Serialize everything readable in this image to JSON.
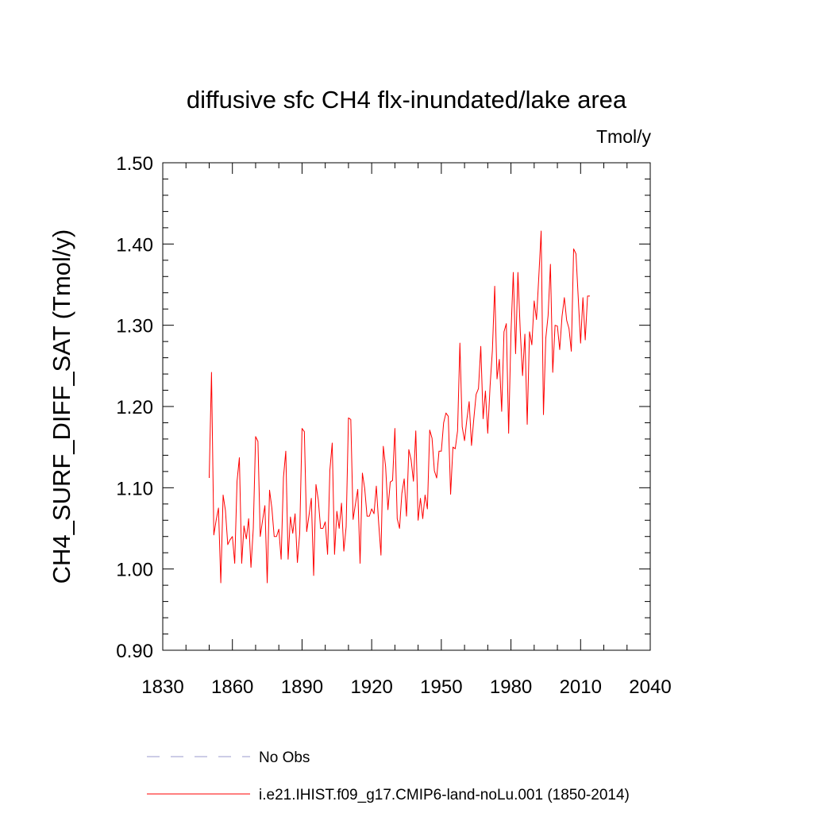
{
  "chart_data": {
    "type": "line",
    "title": "diffusive sfc CH4 flx-inundated/lake area",
    "units": "Tmol/y",
    "xlabel": "",
    "ylabel": "CH4_SURF_DIFF_SAT  (Tmol/y)",
    "xlim": [
      1830,
      2040
    ],
    "ylim": [
      0.9,
      1.5
    ],
    "x_ticks": [
      1830,
      1860,
      1890,
      1920,
      1950,
      1980,
      2010,
      2040
    ],
    "x_tick_labels": [
      "1830",
      "1860",
      "1890",
      "1920",
      "1950",
      "1980",
      "2010",
      "2040"
    ],
    "y_ticks": [
      0.9,
      1.0,
      1.1,
      1.2,
      1.3,
      1.4,
      1.5
    ],
    "y_tick_labels": [
      "0.90",
      "1.00",
      "1.10",
      "1.20",
      "1.30",
      "1.40",
      "1.50"
    ],
    "grid": false,
    "legend_position": "bottom",
    "legend": [
      {
        "label": "No Obs",
        "style": "dashed",
        "color": "#9999cc"
      },
      {
        "label": "i.e21.IHIST.f09_g17.CMIP6-land-noLu.001 (1850-2014)",
        "style": "solid",
        "color": "#ff0000"
      }
    ],
    "series": [
      {
        "name": "i.e21.IHIST.f09_g17.CMIP6-land-noLu.001 (1850-2014)",
        "color": "#ff0000",
        "x": [
          1850,
          1851,
          1852,
          1853,
          1854,
          1855,
          1856,
          1857,
          1858,
          1859,
          1860,
          1861,
          1862,
          1863,
          1864,
          1865,
          1866,
          1867,
          1868,
          1869,
          1870,
          1871,
          1872,
          1873,
          1874,
          1875,
          1876,
          1877,
          1878,
          1879,
          1880,
          1881,
          1882,
          1883,
          1884,
          1885,
          1886,
          1887,
          1888,
          1889,
          1890,
          1891,
          1892,
          1893,
          1894,
          1895,
          1896,
          1897,
          1898,
          1899,
          1900,
          1901,
          1902,
          1903,
          1904,
          1905,
          1906,
          1907,
          1908,
          1909,
          1910,
          1911,
          1912,
          1913,
          1914,
          1915,
          1916,
          1917,
          1918,
          1919,
          1920,
          1921,
          1922,
          1923,
          1924,
          1925,
          1926,
          1927,
          1928,
          1929,
          1930,
          1931,
          1932,
          1933,
          1934,
          1935,
          1936,
          1937,
          1938,
          1939,
          1940,
          1941,
          1942,
          1943,
          1944,
          1945,
          1946,
          1947,
          1948,
          1949,
          1950,
          1951,
          1952,
          1953,
          1954,
          1955,
          1956,
          1957,
          1958,
          1959,
          1960,
          1961,
          1962,
          1963,
          1964,
          1965,
          1966,
          1967,
          1968,
          1969,
          1970,
          1971,
          1972,
          1973,
          1974,
          1975,
          1976,
          1977,
          1978,
          1979,
          1980,
          1981,
          1982,
          1983,
          1984,
          1985,
          1986,
          1987,
          1988,
          1989,
          1990,
          1991,
          1992,
          1993,
          1994,
          1995,
          1996,
          1997,
          1998,
          1999,
          2000,
          2001,
          2002,
          2003,
          2004,
          2005,
          2006,
          2007,
          2008,
          2009,
          2010,
          2011,
          2012,
          2013,
          2014
        ],
        "y": [
          1.112,
          1.242,
          1.042,
          1.06,
          1.075,
          0.983,
          1.091,
          1.072,
          1.03,
          1.036,
          1.04,
          1.007,
          1.108,
          1.137,
          1.007,
          1.053,
          1.037,
          1.062,
          1.002,
          1.05,
          1.163,
          1.157,
          1.04,
          1.06,
          1.078,
          0.983,
          1.097,
          1.075,
          1.04,
          1.04,
          1.049,
          1.012,
          1.113,
          1.145,
          1.012,
          1.064,
          1.044,
          1.068,
          1.008,
          1.044,
          1.173,
          1.169,
          1.046,
          1.066,
          1.087,
          0.992,
          1.104,
          1.085,
          1.05,
          1.05,
          1.058,
          1.018,
          1.122,
          1.155,
          1.018,
          1.071,
          1.05,
          1.081,
          1.022,
          1.052,
          1.186,
          1.184,
          1.061,
          1.08,
          1.098,
          1.007,
          1.118,
          1.099,
          1.065,
          1.065,
          1.074,
          1.068,
          1.102,
          1.057,
          1.017,
          1.151,
          1.126,
          1.073,
          1.107,
          1.109,
          1.173,
          1.062,
          1.05,
          1.093,
          1.111,
          1.065,
          1.147,
          1.134,
          1.108,
          1.17,
          1.06,
          1.087,
          1.062,
          1.091,
          1.074,
          1.171,
          1.161,
          1.121,
          1.112,
          1.145,
          1.145,
          1.18,
          1.192,
          1.188,
          1.092,
          1.15,
          1.148,
          1.17,
          1.278,
          1.175,
          1.158,
          1.184,
          1.206,
          1.152,
          1.185,
          1.215,
          1.222,
          1.274,
          1.185,
          1.219,
          1.167,
          1.225,
          1.269,
          1.348,
          1.234,
          1.258,
          1.194,
          1.292,
          1.302,
          1.167,
          1.29,
          1.365,
          1.265,
          1.365,
          1.293,
          1.238,
          1.289,
          1.178,
          1.292,
          1.276,
          1.33,
          1.307,
          1.36,
          1.416,
          1.19,
          1.284,
          1.312,
          1.375,
          1.242,
          1.3,
          1.299,
          1.27,
          1.311,
          1.334,
          1.306,
          1.296,
          1.268,
          1.394,
          1.388,
          1.333,
          1.278,
          1.334,
          1.282,
          1.336,
          1.336
        ]
      }
    ]
  }
}
